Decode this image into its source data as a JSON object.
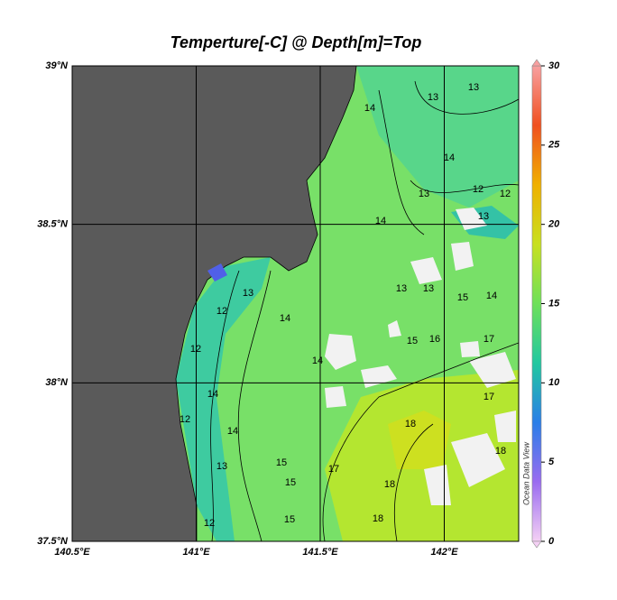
{
  "chart_data": {
    "type": "map",
    "title": "Temperture[-C] @ Depth[m]=Top",
    "xlim": [
      140.5,
      142.3
    ],
    "ylim": [
      37.5,
      39
    ],
    "xticks": [
      {
        "value": 140.5,
        "label": "140.5°E"
      },
      {
        "value": 141,
        "label": "141°E"
      },
      {
        "value": 141.5,
        "label": "141.5°E"
      },
      {
        "value": 142,
        "label": "142°E"
      }
    ],
    "yticks": [
      {
        "value": 37.5,
        "label": "37.5°N"
      },
      {
        "value": 38,
        "label": "38°N"
      },
      {
        "value": 38.5,
        "label": "38.5°N"
      },
      {
        "value": 39,
        "label": "39°N"
      }
    ],
    "grid": true,
    "colorbar": {
      "lim": [
        0,
        30
      ],
      "ticks": [
        0,
        5,
        10,
        15,
        20,
        25,
        30
      ],
      "colors": [
        "#f4d0f4",
        "#9a6cf0",
        "#2a7ee8",
        "#22c8a0",
        "#6ee05a",
        "#c8e020",
        "#f0b000",
        "#f05020",
        "#f8a0a0"
      ]
    },
    "contour_labels": [
      13,
      13,
      14,
      14,
      13,
      12,
      12,
      14,
      13,
      13,
      13,
      15,
      14,
      13,
      14,
      12,
      12,
      15,
      16,
      17,
      14,
      14,
      14,
      12,
      13,
      15,
      15,
      17,
      18,
      18,
      18,
      15,
      12,
      18,
      17
    ],
    "watermark": "Ocean Data View"
  }
}
